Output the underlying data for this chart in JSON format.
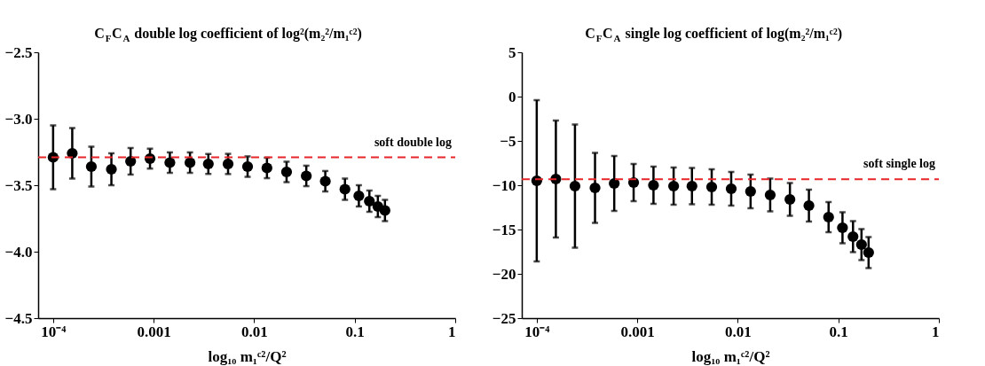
{
  "chart_data": [
    {
      "type": "scatter",
      "title": "C$_{F}$C$_{A}$ double log coefficient of log²(m₂²/m₁ᶜ²)",
      "xlabel": "log₁₀ m₁ᶜ²/Q²",
      "log": "x",
      "marker": "circle",
      "grid": false,
      "x": [
        0.0001,
        0.000155,
        0.00024,
        0.00038,
        0.00059,
        0.00092,
        0.00145,
        0.0023,
        0.0035,
        0.0055,
        0.0086,
        0.0134,
        0.021,
        0.033,
        0.051,
        0.08,
        0.11,
        0.14,
        0.17,
        0.2
      ],
      "series": [
        {
          "color": "#000000",
          "values": [
            -3.29,
            -3.26,
            -3.36,
            -3.38,
            -3.32,
            -3.3,
            -3.33,
            -3.33,
            -3.34,
            -3.34,
            -3.36,
            -3.37,
            -3.4,
            -3.43,
            -3.47,
            -3.53,
            -3.58,
            -3.62,
            -3.66,
            -3.69
          ],
          "errors": [
            0.24,
            0.19,
            0.15,
            0.12,
            0.1,
            0.075,
            0.077,
            0.077,
            0.075,
            0.076,
            0.077,
            0.077,
            0.077,
            0.077,
            0.077,
            0.08,
            0.08,
            0.08,
            0.08,
            0.08
          ]
        }
      ],
      "xlim": [
        7.1e-05,
        1
      ],
      "xticks": [
        {
          "value": 0.0001,
          "label": "10⁻⁴"
        },
        0.001,
        0.01,
        0.1,
        1
      ],
      "ylim": [
        -4.5,
        -2.5
      ],
      "yticks": [
        -4.5,
        {
          "value": -4.0,
          "label": "−4.0"
        },
        -3.5,
        {
          "value": -3.0,
          "label": "−3.0"
        },
        -2.5
      ],
      "ref_lines": [
        {
          "axis": "y",
          "value": -3.29,
          "label": "soft double log",
          "color": "#e8262a",
          "line_style": "dashed"
        }
      ]
    },
    {
      "type": "scatter",
      "title": "C$_{F}$C$_{A}$ single log coefficient of log(m₂²/m₁ᶜ²)",
      "xlabel": "log₁₀ m₁ᶜ²/Q²",
      "log": "x",
      "marker": "circle",
      "grid": false,
      "x": [
        0.0001,
        0.000155,
        0.00024,
        0.00038,
        0.00059,
        0.00092,
        0.00145,
        0.0023,
        0.0035,
        0.0055,
        0.0086,
        0.0134,
        0.021,
        0.033,
        0.051,
        0.08,
        0.11,
        0.14,
        0.17,
        0.2
      ],
      "series": [
        {
          "color": "#000000",
          "values": [
            -9.5,
            -9.3,
            -10.1,
            -10.3,
            -9.8,
            -9.7,
            -10.0,
            -10.1,
            -10.1,
            -10.2,
            -10.4,
            -10.7,
            -11.1,
            -11.6,
            -12.3,
            -13.6,
            -14.8,
            -15.8,
            -16.7,
            -17.6
          ],
          "errors": [
            9.1,
            6.6,
            6.95,
            3.95,
            3.1,
            2.1,
            2.1,
            2.1,
            2.05,
            2.0,
            1.9,
            1.9,
            1.85,
            1.85,
            1.8,
            1.7,
            1.75,
            1.75,
            1.75,
            1.75
          ]
        }
      ],
      "xlim": [
        7.1e-05,
        1
      ],
      "xticks": [
        {
          "value": 0.0001,
          "label": "10⁻⁴"
        },
        0.001,
        0.01,
        0.1,
        1
      ],
      "ylim": [
        -25,
        5
      ],
      "yticks": [
        -25,
        -20,
        -15,
        -10,
        -5,
        0,
        5
      ],
      "ref_lines": [
        {
          "axis": "y",
          "value": -9.32,
          "label": "soft single log",
          "color": "#e8262a",
          "line_style": "dashed"
        }
      ]
    }
  ]
}
